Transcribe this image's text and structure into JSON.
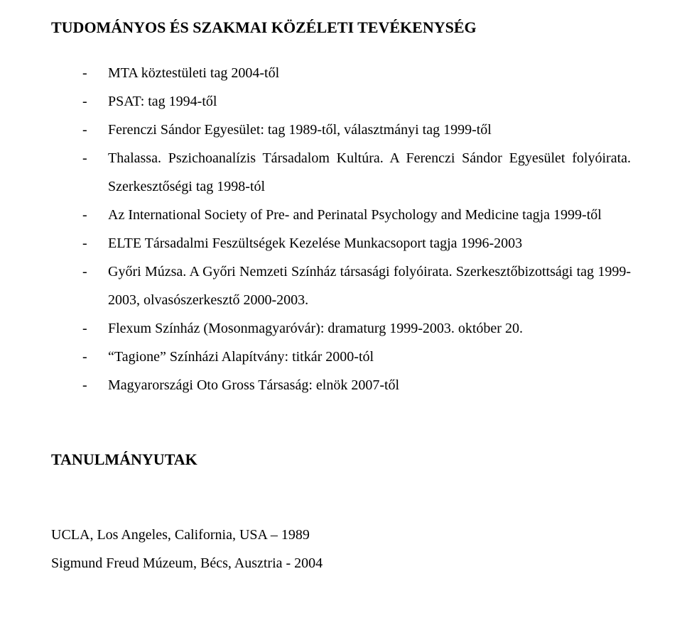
{
  "heading1": "TUDOMÁNYOS ÉS SZAKMAI KÖZÉLETI TEVÉKENYSÉG",
  "list": {
    "i0": "MTA köztestületi tag 2004-től",
    "i1": "PSAT: tag 1994-től",
    "i2": "Ferenczi Sándor Egyesület: tag 1989-től, választmányi tag 1999-től",
    "i3": "Thalassa. Pszichoanalízis Társadalom Kultúra. A Ferenczi Sándor Egyesület folyóirata. Szerkesztőségi tag 1998-tól",
    "i4": "Az International Society of Pre- and Perinatal Psychology and Medicine tagja 1999-től",
    "i5": "ELTE Társadalmi Feszültségek Kezelése Munkacsoport tagja 1996-2003",
    "i6": "Győri Múzsa. A Győri Nemzeti Színház társasági folyóirata. Szerkesztőbizottsági tag 1999-2003, olvasószerkesztő 2000-2003.",
    "i7": "Flexum Színház (Mosonmagyaróvár): dramaturg 1999-2003. október 20.",
    "i8": "“Tagione” Színházi Alapítvány: titkár 2000-tól",
    "i9": "Magyarországi Oto Gross Társaság: elnök 2007-től"
  },
  "heading2": "TANULMÁNYUTAK",
  "trips": {
    "l0": "UCLA, Los Angeles, California, USA – 1989",
    "l1": "Sigmund Freud Múzeum, Bécs, Ausztria - 2004"
  }
}
